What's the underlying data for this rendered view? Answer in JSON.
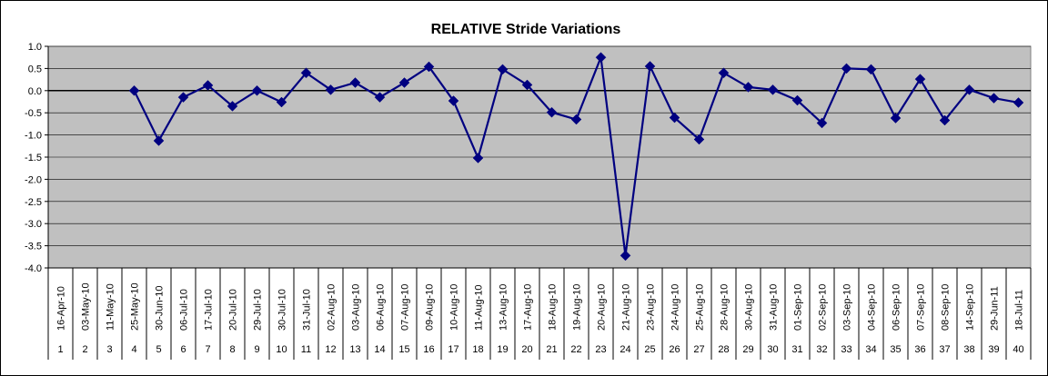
{
  "chart_data": {
    "type": "line",
    "title": "RELATIVE Stride Variations",
    "xlabel": "",
    "ylabel": "",
    "ylim": [
      -4.0,
      1.0
    ],
    "y_ticks": [
      "1.0",
      "0.5",
      "0.0",
      "-0.5",
      "-1.0",
      "-1.5",
      "-2.0",
      "-2.5",
      "-3.0",
      "-3.5",
      "-4.0"
    ],
    "grid": true,
    "legend": "none",
    "colors": {
      "line": "#000080",
      "plot_bg": "#c0c0c0",
      "gridline": "#000000"
    },
    "dates": [
      "16-Apr-10",
      "03-May-10",
      "11-May-10",
      "25-May-10",
      "30-Jun-10",
      "06-Jul-10",
      "17-Jul-10",
      "20-Jul-10",
      "29-Jul-10",
      "30-Jul-10",
      "31-Jul-10",
      "02-Aug-10",
      "03-Aug-10",
      "06-Aug-10",
      "07-Aug-10",
      "09-Aug-10",
      "10-Aug-10",
      "11-Aug-10",
      "13-Aug-10",
      "17-Aug-10",
      "18-Aug-10",
      "19-Aug-10",
      "20-Aug-10",
      "21-Aug-10",
      "23-Aug-10",
      "24-Aug-10",
      "25-Aug-10",
      "28-Aug-10",
      "30-Aug-10",
      "31-Aug-10",
      "01-Sep-10",
      "02-Sep-10",
      "03-Sep-10",
      "04-Sep-10",
      "06-Sep-10",
      "07-Sep-10",
      "08-Sep-10",
      "14-Sep-10",
      "29-Jun-11",
      "18-Jul-11"
    ],
    "categories": [
      "1",
      "2",
      "3",
      "4",
      "5",
      "6",
      "7",
      "8",
      "9",
      "10",
      "11",
      "12",
      "13",
      "14",
      "15",
      "16",
      "17",
      "18",
      "19",
      "20",
      "21",
      "22",
      "23",
      "24",
      "25",
      "26",
      "27",
      "28",
      "29",
      "30",
      "31",
      "32",
      "33",
      "34",
      "35",
      "36",
      "37",
      "38",
      "39",
      "40"
    ],
    "series": [
      {
        "values": [
          null,
          null,
          null,
          0.0,
          -1.13,
          -0.15,
          0.12,
          -0.35,
          0.0,
          -0.26,
          0.4,
          0.02,
          0.18,
          -0.15,
          0.18,
          0.54,
          -0.23,
          -1.52,
          0.48,
          0.13,
          -0.49,
          -0.65,
          0.75,
          -3.72,
          0.55,
          -0.61,
          -1.1,
          0.4,
          0.08,
          0.02,
          -0.22,
          -0.73,
          0.5,
          0.48,
          -0.62,
          0.26,
          -0.67,
          0.02,
          -0.17,
          -0.27
        ]
      }
    ]
  }
}
